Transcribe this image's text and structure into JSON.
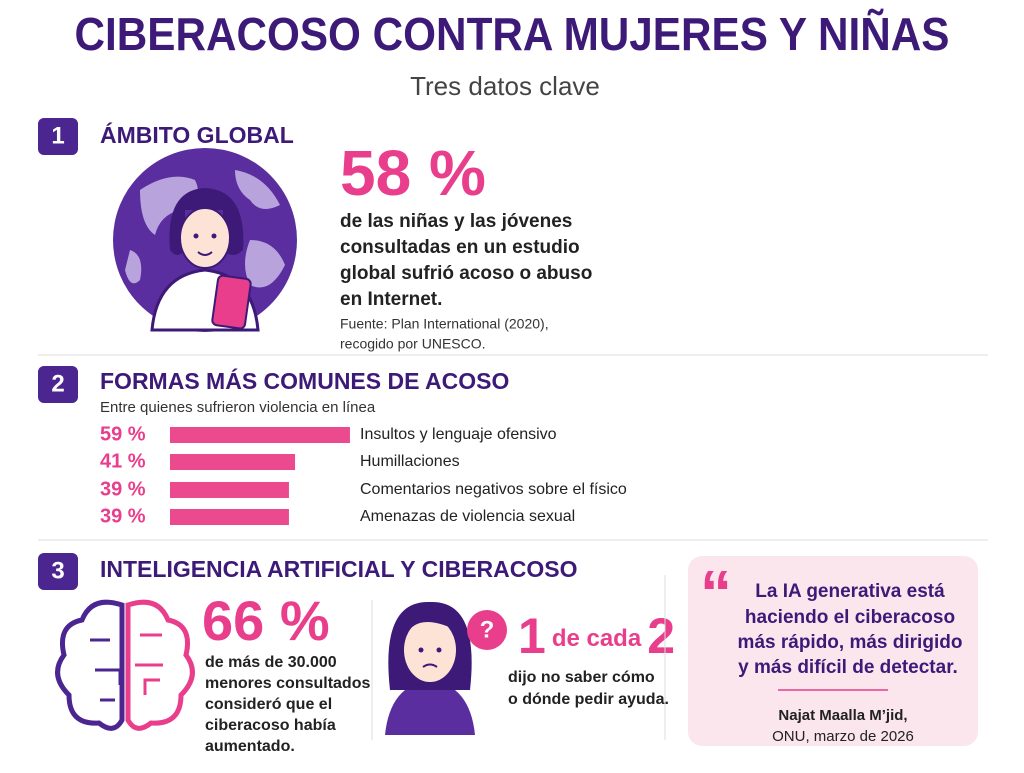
{
  "header": {
    "title": "CIBERACOSO CONTRA MUJERES Y NIÑAS",
    "subtitle": "Tres datos clave"
  },
  "section1": {
    "number": "1",
    "heading": "ÁMBITO GLOBAL",
    "stat": "58 %",
    "lines": [
      "de las niñas y las jóvenes",
      "consultadas en un estudio",
      "global sufrió acoso o abuso",
      "en Internet."
    ],
    "source": [
      "Fuente: Plan International (2020),",
      "recogido por UNESCO."
    ]
  },
  "section2": {
    "number": "2",
    "heading": "FORMAS MÁS COMUNES DE ACOSO",
    "subtitle": "Entre quienes sufrieron violencia en línea",
    "chart_data": {
      "type": "bar",
      "orientation": "horizontal",
      "color": "#ec4a8f",
      "categories": [
        "Insultos y lenguaje ofensivo",
        "Humillaciones",
        "Comentarios negativos sobre el físico",
        "Amenazas de violencia sexual"
      ],
      "values": [
        59,
        41,
        39,
        39
      ],
      "value_labels": [
        "59 %",
        "41 %",
        "39 %",
        "39 %"
      ]
    }
  },
  "section3": {
    "number": "3",
    "heading": "INTELIGENCIA ARTIFICIAL Y CIBERACOSO",
    "stat": "66 %",
    "lines": [
      "de más de 30.000",
      "menores consultados",
      "consideró que el",
      "ciberacoso había",
      "aumentado."
    ],
    "ratio": {
      "first": "1",
      "middle": "de cada",
      "last": "2"
    },
    "ratio_lines": [
      "dijo no saber cómo",
      "o dónde pedir ayuda."
    ],
    "quote": {
      "mark": "“",
      "lines": [
        "La IA generativa está",
        "haciendo el ciberacoso",
        "más rápido, más dirigido",
        "y más difícil de detectar."
      ],
      "author": [
        "Najat Maalla M’jid,",
        "ONU, marzo de 2026"
      ]
    }
  }
}
